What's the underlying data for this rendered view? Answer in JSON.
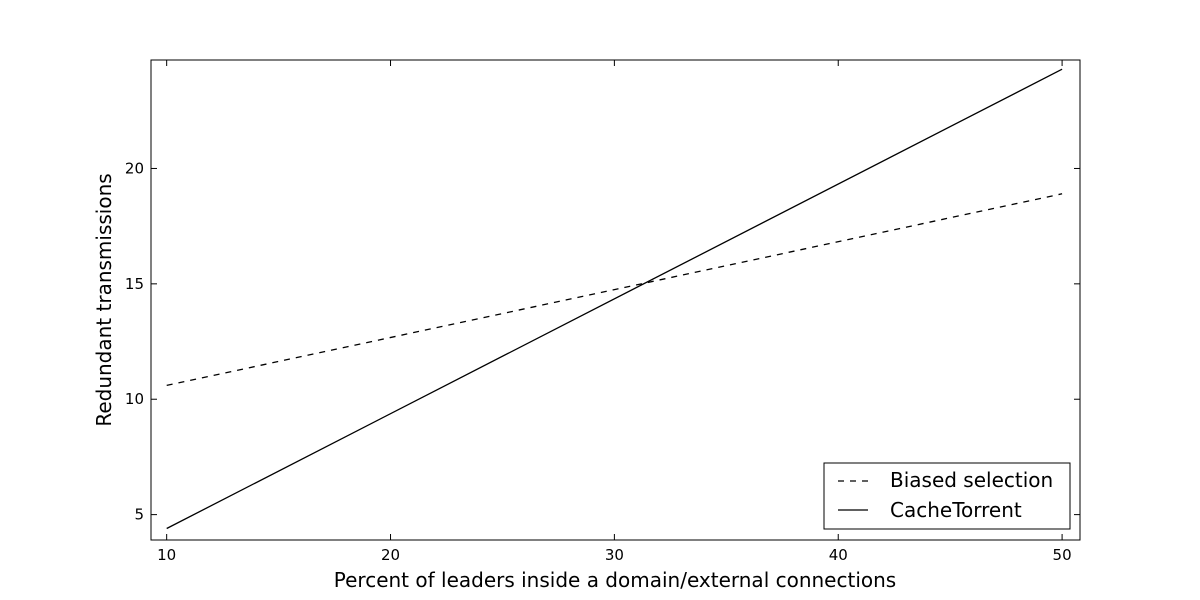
{
  "chart_data": {
    "type": "line",
    "title": "",
    "xlabel": "Percent of leaders inside a domain/external connections",
    "ylabel": "Redundant transmissions",
    "xlim": [
      9.3,
      50.8
    ],
    "ylim": [
      3.9,
      24.7
    ],
    "xticks": [
      10,
      20,
      30,
      40,
      50
    ],
    "yticks": [
      5,
      10,
      15,
      20
    ],
    "grid": false,
    "legend_position": "lower-right",
    "series": [
      {
        "name": "Biased selection",
        "style": "dashed",
        "color": "#000000",
        "x": [
          10,
          50
        ],
        "y": [
          10.6,
          18.9
        ]
      },
      {
        "name": "CacheTorrent",
        "style": "solid",
        "color": "#000000",
        "x": [
          10,
          50
        ],
        "y": [
          4.4,
          24.3
        ]
      }
    ]
  }
}
